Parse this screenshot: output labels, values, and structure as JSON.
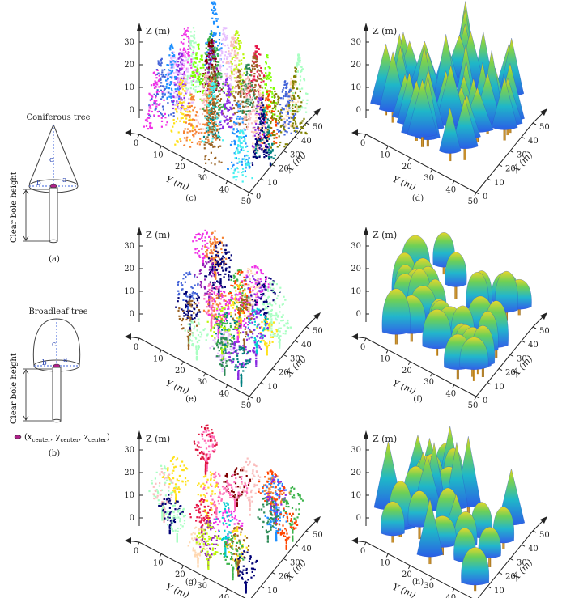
{
  "schematics": {
    "coniferous": {
      "title": "Coniferous tree",
      "param_a": "a",
      "param_b": "b",
      "param_c": "c",
      "bole_label": "Clear bole height",
      "caption": "(a)"
    },
    "broadleaf": {
      "title": "Broadleaf tree",
      "param_a": "a",
      "param_b": "b",
      "param_c": "c",
      "bole_label": "Clear bole height",
      "center_label": "(x",
      "center_sub_x": "center",
      "center_y": ", y",
      "center_sub_y": "center",
      "center_z": ", z",
      "center_sub_z": "center",
      "center_close": ")",
      "caption": "(b)"
    }
  },
  "panels": [
    {
      "id": "c",
      "caption": "(c)",
      "kind": "points",
      "species": "conifer",
      "density": "dense"
    },
    {
      "id": "d",
      "caption": "(d)",
      "kind": "model",
      "species": "conifer",
      "density": "dense"
    },
    {
      "id": "e",
      "caption": "(e)",
      "kind": "points",
      "species": "broadleaf",
      "density": "medium"
    },
    {
      "id": "f",
      "caption": "(f)",
      "kind": "model",
      "species": "broadleaf",
      "density": "medium"
    },
    {
      "id": "g",
      "caption": "(g)",
      "kind": "points",
      "species": "mixed",
      "density": "sparse"
    },
    {
      "id": "h",
      "caption": "(h)",
      "kind": "model",
      "species": "mixed",
      "density": "sparse"
    }
  ],
  "axes": {
    "z_label": "Z (m)",
    "x_label": "X (m)",
    "y_label": "Y (m)",
    "z_ticks": [
      "0",
      "10",
      "20",
      "30"
    ],
    "x_ticks": [
      "0",
      "10",
      "20",
      "30",
      "40",
      "50"
    ],
    "y_ticks": [
      "0",
      "10",
      "20",
      "30",
      "40",
      "50"
    ]
  }
}
